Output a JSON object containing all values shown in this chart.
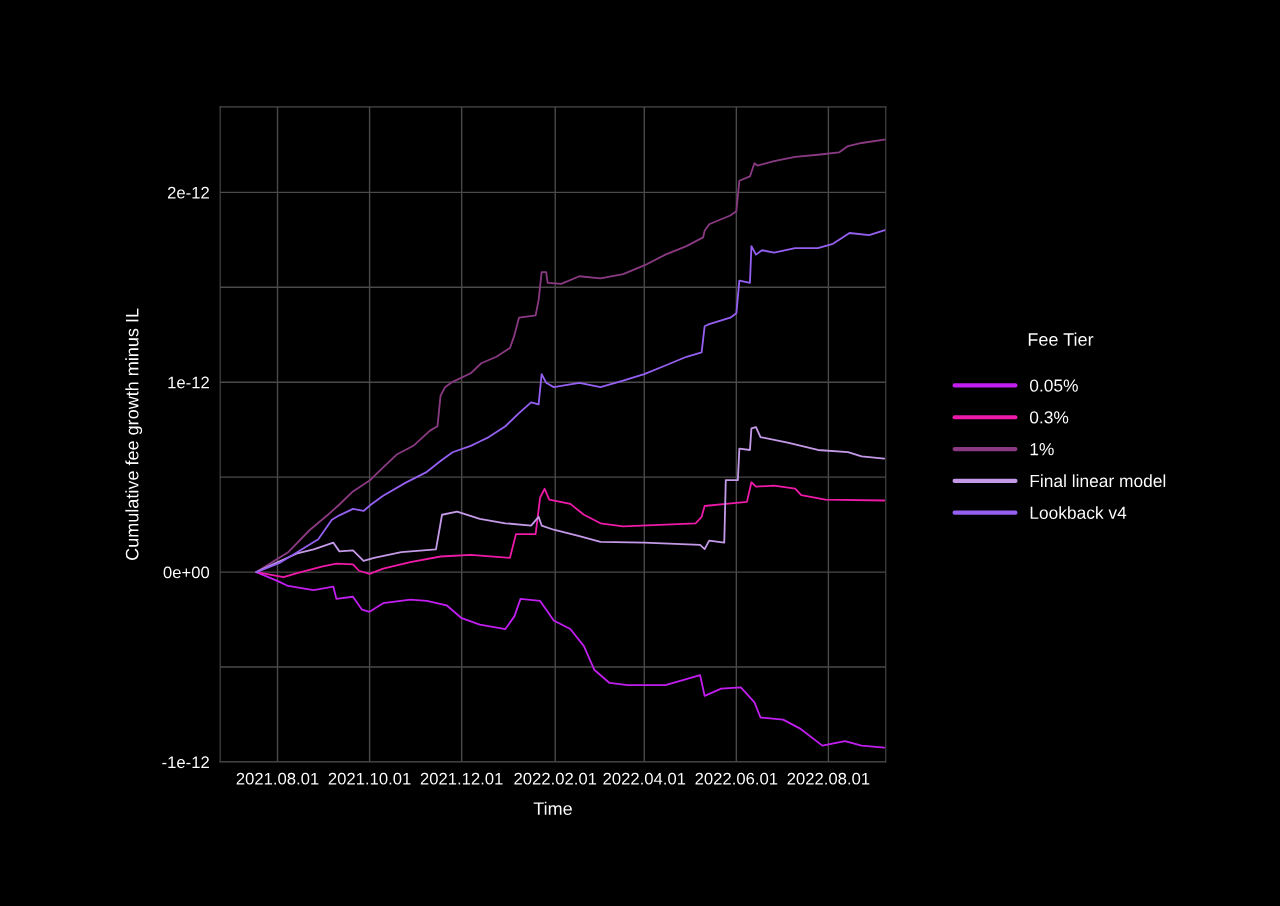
{
  "chart_data": {
    "type": "line",
    "xlabel": "Time",
    "ylabel": "Cumulative fee growth minus IL",
    "legend_title": "Fee Tier",
    "legend": "right",
    "grid": true,
    "xlim": [
      "2021-06-24",
      "2022-09-08"
    ],
    "xticks": [
      {
        "value": "2021-08-01",
        "label": "2021.08.01"
      },
      {
        "value": "2021-10-01",
        "label": "2021.10.01"
      },
      {
        "value": "2021-12-01",
        "label": "2021.12.01"
      },
      {
        "value": "2022-02-01",
        "label": "2022.02.01"
      },
      {
        "value": "2022-04-01",
        "label": "2022.04.01"
      },
      {
        "value": "2022-06-01",
        "label": "2022.06.01"
      },
      {
        "value": "2022-08-01",
        "label": "2022.08.01"
      }
    ],
    "ylim": [
      -1e-12,
      2.45e-12
    ],
    "yticks": [
      {
        "value": -1e-12,
        "label": "-1e-12"
      },
      {
        "value": -5e-13,
        "label": null
      },
      {
        "value": 0,
        "label": "0e+00"
      },
      {
        "value": 5e-13,
        "label": null
      },
      {
        "value": 1e-12,
        "label": "1e-12"
      },
      {
        "value": 1.5e-12,
        "label": null
      },
      {
        "value": 2e-12,
        "label": "2e-12"
      }
    ],
    "series": [
      {
        "name": "0.05%",
        "color": "#c21ef0",
        "x": [
          "2021-07-18",
          "2021-08-02",
          "2021-08-08",
          "2021-08-25",
          "2021-09-07",
          "2021-09-09",
          "2021-09-20",
          "2021-09-26",
          "2021-10-01",
          "2021-10-10",
          "2021-10-28",
          "2021-11-08",
          "2021-11-21",
          "2021-12-01",
          "2021-12-13",
          "2021-12-30",
          "2022-01-05",
          "2022-01-09",
          "2022-01-22",
          "2022-01-27",
          "2022-01-31",
          "2022-02-11",
          "2022-02-20",
          "2022-02-27",
          "2022-03-09",
          "2022-03-21",
          "2022-04-01",
          "2022-04-15",
          "2022-05-08",
          "2022-05-11",
          "2022-05-22",
          "2022-06-04",
          "2022-06-13",
          "2022-06-17",
          "2022-07-02",
          "2022-07-13",
          "2022-07-28",
          "2022-08-12",
          "2022-08-23",
          "2022-09-07"
        ],
        "values": [
          0,
          -5e-14,
          -7.3e-14,
          -9.5e-14,
          -7.7e-14,
          -1.41e-13,
          -1.3e-13,
          -1.98e-13,
          -2.09e-13,
          -1.64e-13,
          -1.45e-13,
          -1.52e-13,
          -1.75e-13,
          -2.43e-13,
          -2.77e-13,
          -3e-13,
          -2.32e-13,
          -1.41e-13,
          -1.52e-13,
          -2.09e-13,
          -2.55e-13,
          -3e-13,
          -3.9e-13,
          -5.16e-13,
          -5.84e-13,
          -5.95e-13,
          -5.95e-13,
          -5.95e-13,
          -5.43e-13,
          -6.52e-13,
          -6.14e-13,
          -6.07e-13,
          -6.86e-13,
          -7.66e-13,
          -7.77e-13,
          -8.23e-13,
          -9.14e-13,
          -8.9e-13,
          -9.14e-13,
          -9.25e-13
        ]
      },
      {
        "name": "0.3%",
        "color": "#ee1aa8",
        "x": [
          "2021-07-18",
          "2021-08-05",
          "2021-08-14",
          "2021-08-31",
          "2021-09-09",
          "2021-09-20",
          "2021-09-24",
          "2021-10-01",
          "2021-10-10",
          "2021-10-28",
          "2021-11-17",
          "2021-12-07",
          "2022-01-02",
          "2022-01-06",
          "2022-01-19",
          "2022-01-22",
          "2022-01-25",
          "2022-01-28",
          "2022-02-11",
          "2022-02-20",
          "2022-03-03",
          "2022-03-18",
          "2022-04-15",
          "2022-05-05",
          "2022-05-09",
          "2022-05-11",
          "2022-05-25",
          "2022-06-08",
          "2022-06-11",
          "2022-06-14",
          "2022-06-26",
          "2022-07-10",
          "2022-07-14",
          "2022-07-30",
          "2022-09-07"
        ],
        "values": [
          0,
          -2.7e-14,
          -5e-15,
          3e-14,
          4.5e-14,
          4.1e-14,
          7e-15,
          -9e-15,
          1.8e-14,
          5.2e-14,
          8.2e-14,
          9.1e-14,
          7.5e-14,
          2e-13,
          2e-13,
          3.93e-13,
          4.39e-13,
          3.82e-13,
          3.59e-13,
          3.02e-13,
          2.57e-13,
          2.41e-13,
          2.5e-13,
          2.57e-13,
          2.91e-13,
          3.48e-13,
          3.59e-13,
          3.7e-13,
          4.73e-13,
          4.5e-13,
          4.55e-13,
          4.39e-13,
          4.05e-13,
          3.82e-13,
          3.77e-13
        ]
      },
      {
        "name": "1%",
        "color": "#8a3a82",
        "x": [
          "2021-07-18",
          "2021-08-08",
          "2021-08-22",
          "2021-09-03",
          "2021-09-11",
          "2021-09-20",
          "2021-10-01",
          "2021-10-10",
          "2021-10-19",
          "2021-10-30",
          "2021-11-10",
          "2021-11-15",
          "2021-11-17",
          "2021-11-20",
          "2021-11-25",
          "2021-12-07",
          "2021-12-14",
          "2021-12-24",
          "2022-01-02",
          "2022-01-05",
          "2022-01-08",
          "2022-01-19",
          "2022-01-21",
          "2022-01-23",
          "2022-01-26",
          "2022-01-27",
          "2022-02-05",
          "2022-02-17",
          "2022-03-03",
          "2022-03-18",
          "2022-04-01",
          "2022-04-15",
          "2022-04-29",
          "2022-05-10",
          "2022-05-11",
          "2022-05-14",
          "2022-05-28",
          "2022-06-01",
          "2022-06-03",
          "2022-06-10",
          "2022-06-13",
          "2022-06-15",
          "2022-06-26",
          "2022-07-10",
          "2022-07-25",
          "2022-08-08",
          "2022-08-14",
          "2022-08-23",
          "2022-09-08"
        ],
        "values": [
          0,
          1.04e-13,
          2.19e-13,
          2.99e-13,
          3.56e-13,
          4.25e-13,
          4.82e-13,
          5.51e-13,
          6.19e-13,
          6.65e-13,
          7.45e-13,
          7.68e-13,
          9.28e-13,
          9.74e-13,
          1.002e-12,
          1.047e-12,
          1.1e-12,
          1.134e-12,
          1.18e-12,
          1.248e-12,
          1.34e-12,
          1.352e-12,
          1.432e-12,
          1.58e-12,
          1.58e-12,
          1.523e-12,
          1.518e-12,
          1.558e-12,
          1.547e-12,
          1.569e-12,
          1.615e-12,
          1.672e-12,
          1.717e-12,
          1.763e-12,
          1.798e-12,
          1.832e-12,
          1.878e-12,
          1.9e-12,
          2.061e-12,
          2.084e-12,
          2.153e-12,
          2.141e-12,
          2.164e-12,
          2.187e-12,
          2.198e-12,
          2.21e-12,
          2.244e-12,
          2.26e-12,
          2.279e-12
        ]
      },
      {
        "name": "Final linear model",
        "color": "#c49ae8",
        "x": [
          "2021-07-18",
          "2021-07-30",
          "2021-08-14",
          "2021-08-25",
          "2021-09-07",
          "2021-09-11",
          "2021-09-20",
          "2021-09-27",
          "2021-10-04",
          "2021-10-22",
          "2021-11-14",
          "2021-11-18",
          "2021-11-28",
          "2021-12-13",
          "2021-12-30",
          "2022-01-16",
          "2022-01-21",
          "2022-01-23",
          "2022-01-31",
          "2022-02-17",
          "2022-03-03",
          "2022-04-01",
          "2022-05-08",
          "2022-05-11",
          "2022-05-14",
          "2022-05-24",
          "2022-05-25",
          "2022-06-02",
          "2022-06-03",
          "2022-06-10",
          "2022-06-11",
          "2022-06-14",
          "2022-06-17",
          "2022-07-05",
          "2022-07-25",
          "2022-08-14",
          "2022-08-23",
          "2022-09-07"
        ],
        "values": [
          0,
          4.5e-14,
          9.8e-14,
          1.2e-13,
          1.55e-13,
          1.09e-13,
          1.14e-13,
          5.9e-14,
          7.5e-14,
          1.05e-13,
          1.2e-13,
          3.02e-13,
          3.18e-13,
          2.8e-13,
          2.57e-13,
          2.45e-13,
          2.91e-13,
          2.45e-13,
          2.23e-13,
          1.89e-13,
          1.59e-13,
          1.55e-13,
          1.43e-13,
          1.21e-13,
          1.66e-13,
          1.55e-13,
          4.84e-13,
          4.84e-13,
          6.5e-13,
          6.43e-13,
          7.57e-13,
          7.64e-13,
          7.11e-13,
          6.82e-13,
          6.43e-13,
          6.32e-13,
          6.09e-13,
          5.98e-13
        ]
      },
      {
        "name": "Lookback v4",
        "color": "#9560f2",
        "x": [
          "2021-07-18",
          "2021-08-02",
          "2021-08-14",
          "2021-08-28",
          "2021-09-06",
          "2021-09-11",
          "2021-09-20",
          "2021-09-27",
          "2021-10-02",
          "2021-10-10",
          "2021-10-25",
          "2021-11-08",
          "2021-11-17",
          "2021-11-25",
          "2021-12-07",
          "2021-12-13",
          "2021-12-19",
          "2021-12-30",
          "2022-01-08",
          "2022-01-16",
          "2022-01-21",
          "2022-01-23",
          "2022-01-26",
          "2022-01-31",
          "2022-02-17",
          "2022-03-03",
          "2022-03-18",
          "2022-04-01",
          "2022-04-15",
          "2022-04-29",
          "2022-05-09",
          "2022-05-11",
          "2022-05-14",
          "2022-05-28",
          "2022-06-01",
          "2022-06-03",
          "2022-06-10",
          "2022-06-11",
          "2022-06-14",
          "2022-06-18",
          "2022-06-26",
          "2022-07-10",
          "2022-07-25",
          "2022-08-04",
          "2022-08-15",
          "2022-08-28",
          "2022-09-08"
        ],
        "values": [
          0,
          4.7e-14,
          1.04e-13,
          1.73e-13,
          2.76e-13,
          2.99e-13,
          3.33e-13,
          3.22e-13,
          3.56e-13,
          4.02e-13,
          4.71e-13,
          5.28e-13,
          5.85e-13,
          6.31e-13,
          6.65e-13,
          6.88e-13,
          7.11e-13,
          7.68e-13,
          8.37e-13,
          8.94e-13,
          8.83e-13,
          1.043e-12,
          9.97e-13,
          9.74e-13,
          9.97e-13,
          9.74e-13,
          1.008e-12,
          1.043e-12,
          1.088e-12,
          1.134e-12,
          1.157e-12,
          1.295e-12,
          1.306e-12,
          1.34e-12,
          1.363e-12,
          1.535e-12,
          1.523e-12,
          1.717e-12,
          1.672e-12,
          1.695e-12,
          1.683e-12,
          1.706e-12,
          1.706e-12,
          1.729e-12,
          1.786e-12,
          1.775e-12,
          1.802e-12
        ]
      }
    ]
  }
}
